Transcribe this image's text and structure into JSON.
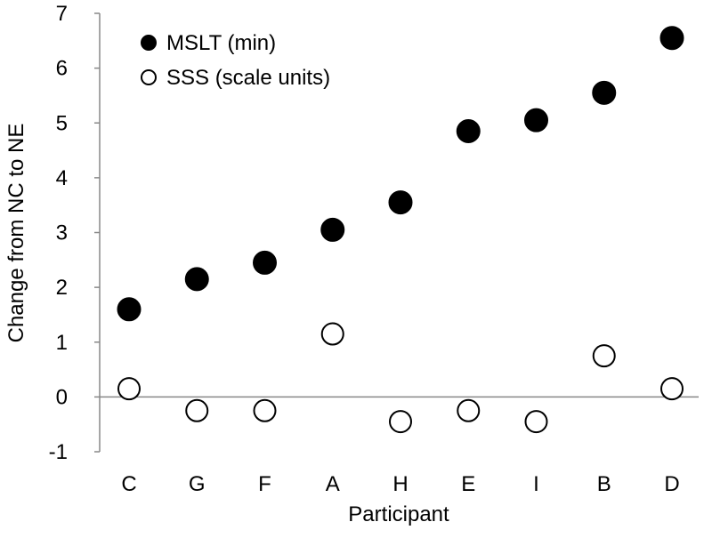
{
  "chart_data": {
    "type": "scatter",
    "categories": [
      "C",
      "G",
      "F",
      "A",
      "H",
      "E",
      "I",
      "B",
      "D"
    ],
    "series": [
      {
        "name": "MSLT (min)",
        "marker": "filled-circle",
        "color": "#000000",
        "values": [
          1.6,
          2.15,
          2.45,
          3.05,
          3.55,
          4.85,
          5.05,
          5.55,
          6.55
        ]
      },
      {
        "name": "SSS (scale units)",
        "marker": "open-circle",
        "color": "#000000",
        "values": [
          0.15,
          -0.25,
          -0.25,
          1.15,
          -0.45,
          -0.25,
          -0.45,
          0.75,
          0.15
        ]
      }
    ],
    "xlabel": "Participant",
    "ylabel": "Change from NC to NE",
    "ylim": [
      -1,
      7
    ],
    "yticks": [
      -1,
      0,
      1,
      2,
      3,
      4,
      5,
      6,
      7
    ],
    "grid": false,
    "legend": "top-left"
  }
}
